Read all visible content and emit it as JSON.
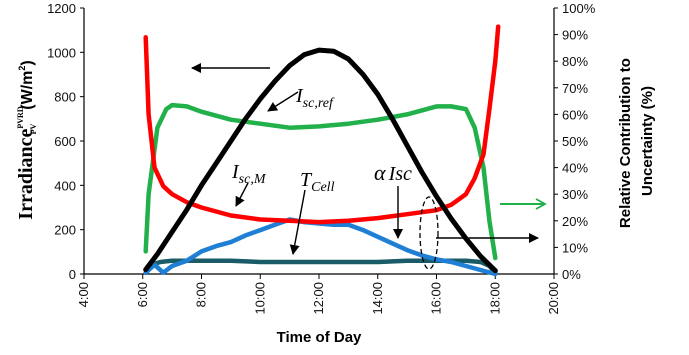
{
  "chart_data": {
    "type": "line",
    "xlabel": "Time of Day",
    "ylabel_left": {
      "main": "Irradiance",
      "sup": "PVRD",
      "sub": "PV",
      "unit": "(W/m",
      "unit_sup": "2",
      "unit_end": ")"
    },
    "ylabel_right_line1": "Relative Contribution to",
    "ylabel_right_line2": "Uncertainty (%)",
    "x_ticks": [
      "4:00",
      "6:00",
      "8:00",
      "10:00",
      "12:00",
      "14:00",
      "16:00",
      "18:00",
      "20:00"
    ],
    "x_range_hours": [
      4,
      20
    ],
    "y_left_ticks": [
      "0",
      "200",
      "400",
      "600",
      "800",
      "1000",
      "1200"
    ],
    "y_left_range": [
      0,
      1200
    ],
    "y_right_ticks": [
      "0%",
      "10%",
      "20%",
      "30%",
      "40%",
      "50%",
      "60%",
      "70%",
      "80%",
      "90%",
      "100%"
    ],
    "y_right_range": [
      0,
      100
    ],
    "annotations": {
      "isc_ref_main": "I",
      "isc_ref_sub": "sc,ref",
      "isc_m_main": "I",
      "isc_m_sub": "sc,M",
      "tcell_main": "T",
      "tcell_sub": "Cell",
      "alpha": "α",
      "alpha_isc": "Isc"
    },
    "series": [
      {
        "axis": "left",
        "color": "#000000",
        "x": [
          6.1,
          6.5,
          7,
          7.5,
          8,
          8.5,
          9,
          9.5,
          10,
          10.5,
          11,
          11.5,
          12,
          12.5,
          13,
          13.5,
          14,
          14.5,
          15,
          15.5,
          16,
          16.5,
          17,
          17.5,
          18
        ],
        "y": [
          20,
          90,
          190,
          290,
          400,
          500,
          600,
          700,
          790,
          870,
          940,
          990,
          1010,
          1005,
          970,
          900,
          810,
          700,
          580,
          460,
          350,
          250,
          160,
          80,
          15
        ]
      },
      {
        "axis": "right",
        "color": "#ff0000",
        "x": [
          6.1,
          6.2,
          6.4,
          6.7,
          7,
          7.5,
          8,
          9,
          10,
          11,
          12,
          13,
          14,
          15,
          16,
          16.5,
          17,
          17.3,
          17.6,
          17.8,
          18.0,
          18.1
        ],
        "y": [
          89,
          60,
          40,
          33,
          30,
          27,
          25,
          22,
          20.5,
          20,
          19.5,
          20,
          21,
          22.5,
          24,
          26,
          30,
          36,
          45,
          62,
          80,
          93
        ]
      },
      {
        "axis": "right",
        "color": "#22b04b",
        "x": [
          6.1,
          6.2,
          6.5,
          6.8,
          7,
          7.5,
          8,
          9,
          10,
          11,
          12,
          13,
          14,
          15,
          16,
          16.5,
          17,
          17.3,
          17.6,
          17.8,
          18.0
        ],
        "y": [
          8.5,
          30,
          55,
          62,
          63.5,
          63,
          61,
          58,
          56.5,
          55,
          55.5,
          56.5,
          58,
          60,
          63,
          63,
          62,
          55,
          40,
          20,
          6
        ]
      },
      {
        "axis": "right",
        "color": "#1f7fd4",
        "x": [
          6.1,
          6.4,
          6.7,
          7,
          7.5,
          8,
          8.5,
          9,
          9.5,
          10,
          10.5,
          11,
          11.5,
          12,
          12.5,
          13,
          13.5,
          14,
          14.5,
          15,
          15.5,
          16,
          16.5,
          17,
          17.5,
          18
        ],
        "y": [
          0.5,
          3.5,
          0.5,
          3,
          5,
          8.5,
          10.5,
          12,
          14.5,
          16.5,
          18.5,
          20.5,
          19.5,
          19,
          18.5,
          18.5,
          16.5,
          14,
          11.5,
          9,
          7,
          5.5,
          4.5,
          3,
          1.5,
          0
        ]
      },
      {
        "axis": "right",
        "color": "#1a5b68",
        "x": [
          6.1,
          6.3,
          6.6,
          7,
          8,
          9,
          10,
          11,
          12,
          13,
          14,
          15,
          16,
          17,
          17.5,
          17.8,
          18.0
        ],
        "y": [
          0.5,
          3.5,
          4.5,
          5,
          5,
          5,
          4.5,
          4.5,
          4.5,
          4.5,
          4.5,
          5,
          5,
          5,
          4.5,
          3,
          0.5
        ]
      }
    ]
  }
}
